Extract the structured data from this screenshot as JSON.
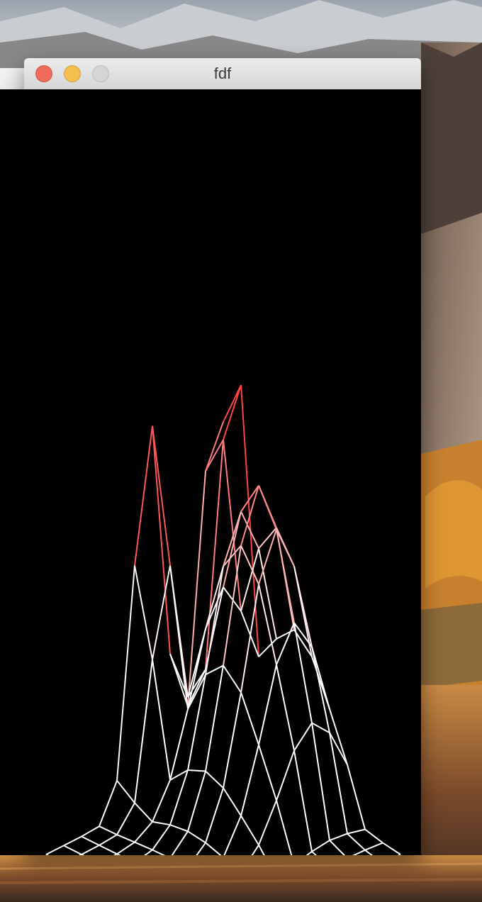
{
  "window": {
    "title": "fdf",
    "buttons": [
      "close",
      "minimize",
      "zoom"
    ],
    "background": "#000000",
    "line_color_low": "#ffffff",
    "line_color_high": "#ff0000"
  },
  "desktop": {
    "wallpaper": "mountain-lake-wallpaper"
  }
}
